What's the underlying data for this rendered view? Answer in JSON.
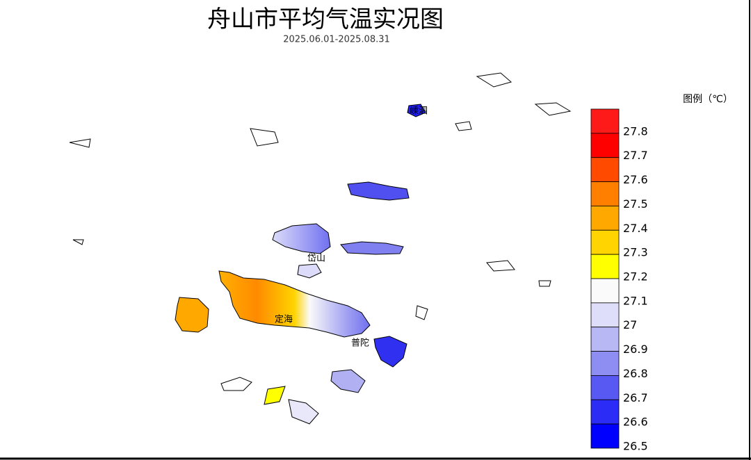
{
  "title": "舟山市平均气温实况图",
  "subtitle": "2025.06.01-2025.08.31",
  "places": [
    "嵊泗",
    "岱山",
    "定海",
    "普陀"
  ],
  "legend": {
    "title": "图例（℃）",
    "labels": [
      "27.8",
      "27.7",
      "27.6",
      "27.5",
      "27.4",
      "27.3",
      "27.2",
      "27.1",
      "27",
      "26.9",
      "26.8",
      "26.7",
      "26.6",
      "26.5"
    ],
    "colors": [
      "#ff1a1a",
      "#ff0000",
      "#ff4a00",
      "#ff8000",
      "#ffa800",
      "#ffd400",
      "#ffff00",
      "#fafafa",
      "#dedefa",
      "#b8b8f5",
      "#8e8ef2",
      "#5858f2",
      "#2c2cf7",
      "#0000ff"
    ]
  }
}
